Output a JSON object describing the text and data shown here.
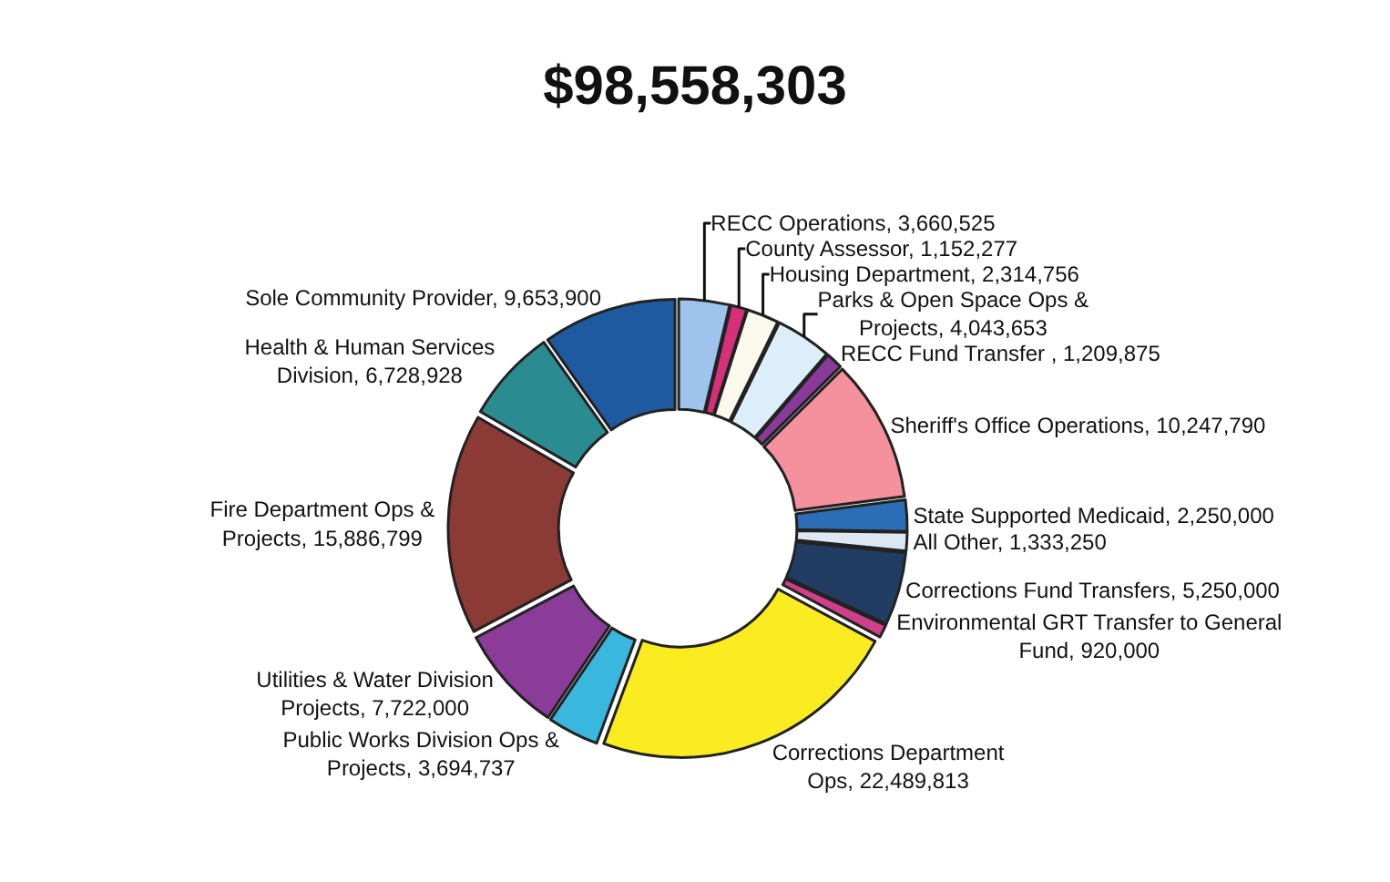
{
  "chart_data": {
    "type": "donut",
    "title": "$98,558,303",
    "categories": [
      "RECC Operations",
      "County Assessor",
      "Housing Department",
      "Parks & Open Space Ops & Projects",
      "RECC Fund Transfer ",
      "Sheriff's Office Operations",
      "State Supported Medicaid",
      "All Other",
      "Corrections Fund Transfers",
      "Environmental GRT Transfer to General Fund",
      "Corrections Department Ops",
      "Public Works Division Ops & Projects",
      "Utilities & Water Division Projects",
      "Fire Department Ops & Projects",
      "Health & Human Services Division",
      "Sole Community Provider"
    ],
    "values": [
      3660525,
      1152277,
      2314756,
      4043653,
      1209875,
      10247790,
      2250000,
      1333250,
      5250000,
      920000,
      22489813,
      3694737,
      7722000,
      15886799,
      6728928,
      9653900
    ],
    "colors": [
      "#9ec3ec",
      "#d6307a",
      "#fbf8ee",
      "#dceefa",
      "#8a3a98",
      "#f4919c",
      "#2c6eb5",
      "#dde8f2",
      "#223d64",
      "#d0408a",
      "#fbec22",
      "#3ab7df",
      "#8b3c98",
      "#8c3a35",
      "#2a8c90",
      "#1f5aa0"
    ],
    "value_labels": [
      "3,660,525",
      "1,152,277",
      "2,314,756",
      "4,043,653",
      "1,209,875",
      "10,247,790",
      "2,250,000",
      "1,333,250",
      "5,250,000",
      "920,000",
      "22,489,813",
      "3,694,737",
      "7,722,000",
      "15,886,799",
      "6,728,928",
      "9,653,900"
    ],
    "legend": false
  }
}
